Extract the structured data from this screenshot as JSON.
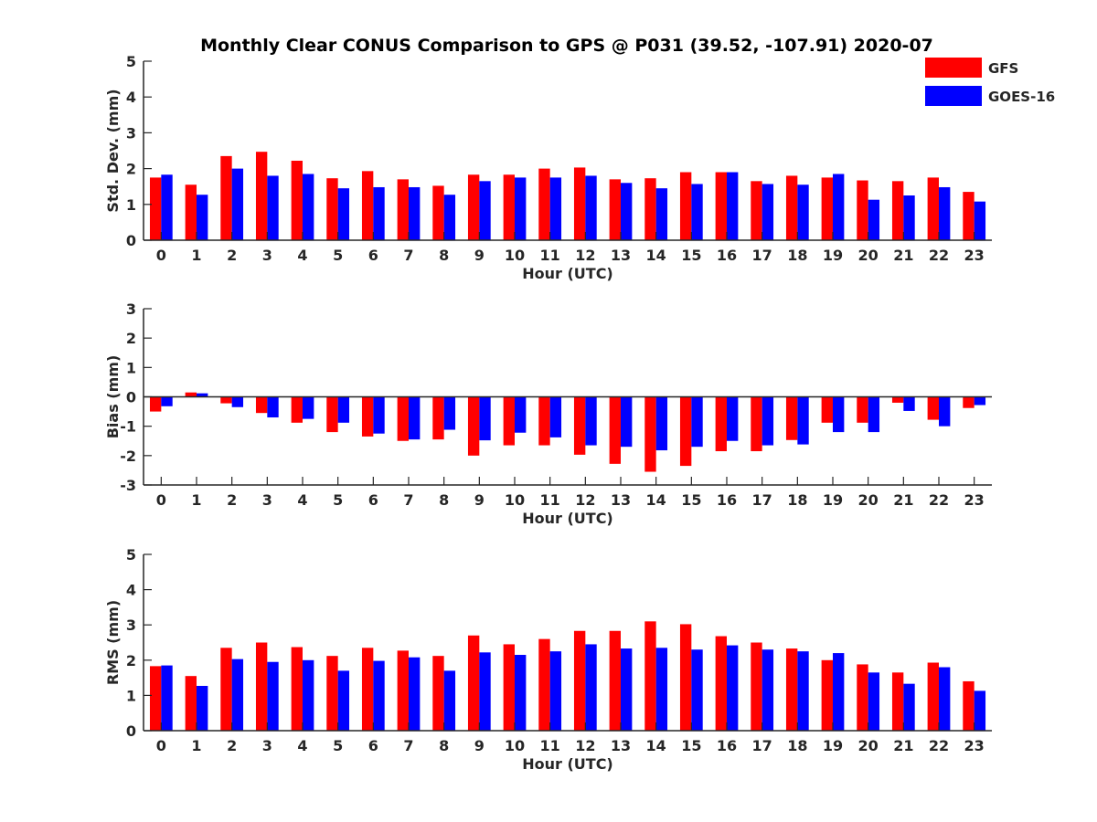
{
  "title": "Monthly Clear CONUS Comparison to GPS @ P031 (39.52, -107.91) 2020-07",
  "legend": {
    "placement": "top-right",
    "entries": [
      {
        "name": "GFS",
        "color": "#ff0000"
      },
      {
        "name": "GOES-16",
        "color": "#0000ff"
      }
    ]
  },
  "chart_data": [
    {
      "type": "bar",
      "xlabel": "Hour (UTC)",
      "ylabel": "Std. Dev. (mm)",
      "ylim": [
        0,
        5
      ],
      "yticks": [
        0,
        1,
        2,
        3,
        4,
        5
      ],
      "categories": [
        "0",
        "1",
        "2",
        "3",
        "4",
        "5",
        "6",
        "7",
        "8",
        "9",
        "10",
        "11",
        "12",
        "13",
        "14",
        "15",
        "16",
        "17",
        "18",
        "19",
        "20",
        "21",
        "22",
        "23"
      ],
      "series": [
        {
          "name": "GFS",
          "color": "#ff0000",
          "values": [
            1.75,
            1.55,
            2.35,
            2.47,
            2.22,
            1.73,
            1.93,
            1.7,
            1.52,
            1.83,
            1.83,
            2.0,
            2.03,
            1.7,
            1.73,
            1.9,
            1.9,
            1.65,
            1.8,
            1.75,
            1.67,
            1.65,
            1.75,
            1.35
          ]
        },
        {
          "name": "GOES-16",
          "color": "#0000ff",
          "values": [
            1.83,
            1.27,
            2.0,
            1.8,
            1.85,
            1.45,
            1.48,
            1.48,
            1.27,
            1.65,
            1.75,
            1.75,
            1.8,
            1.6,
            1.45,
            1.57,
            1.9,
            1.57,
            1.55,
            1.85,
            1.13,
            1.25,
            1.48,
            1.08
          ]
        }
      ]
    },
    {
      "type": "bar",
      "xlabel": "Hour (UTC)",
      "ylabel": "Bias (mm)",
      "ylim": [
        -3,
        3
      ],
      "yticks": [
        -3,
        -2,
        -1,
        0,
        1,
        2,
        3
      ],
      "categories": [
        "0",
        "1",
        "2",
        "3",
        "4",
        "5",
        "6",
        "7",
        "8",
        "9",
        "10",
        "11",
        "12",
        "13",
        "14",
        "15",
        "16",
        "17",
        "18",
        "19",
        "20",
        "21",
        "22",
        "23"
      ],
      "series": [
        {
          "name": "GFS",
          "color": "#ff0000",
          "values": [
            -0.5,
            0.15,
            -0.22,
            -0.55,
            -0.88,
            -1.2,
            -1.35,
            -1.5,
            -1.45,
            -2.0,
            -1.65,
            -1.65,
            -1.97,
            -2.28,
            -2.55,
            -2.35,
            -1.85,
            -1.85,
            -1.47,
            -0.88,
            -0.88,
            -0.2,
            -0.78,
            -0.38
          ]
        },
        {
          "name": "GOES-16",
          "color": "#0000ff",
          "values": [
            -0.32,
            0.12,
            -0.35,
            -0.7,
            -0.75,
            -0.88,
            -1.25,
            -1.45,
            -1.12,
            -1.48,
            -1.22,
            -1.38,
            -1.65,
            -1.7,
            -1.82,
            -1.7,
            -1.5,
            -1.65,
            -1.62,
            -1.2,
            -1.2,
            -0.48,
            -1.0,
            -0.28
          ]
        }
      ]
    },
    {
      "type": "bar",
      "xlabel": "Hour (UTC)",
      "ylabel": "RMS (mm)",
      "ylim": [
        0,
        5
      ],
      "yticks": [
        0,
        1,
        2,
        3,
        4,
        5
      ],
      "categories": [
        "0",
        "1",
        "2",
        "3",
        "4",
        "5",
        "6",
        "7",
        "8",
        "9",
        "10",
        "11",
        "12",
        "13",
        "14",
        "15",
        "16",
        "17",
        "18",
        "19",
        "20",
        "21",
        "22",
        "23"
      ],
      "series": [
        {
          "name": "GFS",
          "color": "#ff0000",
          "values": [
            1.83,
            1.55,
            2.35,
            2.5,
            2.37,
            2.12,
            2.35,
            2.27,
            2.12,
            2.7,
            2.45,
            2.6,
            2.83,
            2.83,
            3.1,
            3.02,
            2.68,
            2.5,
            2.33,
            2.0,
            1.88,
            1.65,
            1.93,
            1.4
          ]
        },
        {
          "name": "GOES-16",
          "color": "#0000ff",
          "values": [
            1.85,
            1.27,
            2.03,
            1.95,
            2.0,
            1.7,
            1.98,
            2.08,
            1.7,
            2.22,
            2.15,
            2.25,
            2.45,
            2.33,
            2.35,
            2.3,
            2.42,
            2.3,
            2.25,
            2.2,
            1.65,
            1.33,
            1.8,
            1.13
          ]
        }
      ]
    }
  ]
}
